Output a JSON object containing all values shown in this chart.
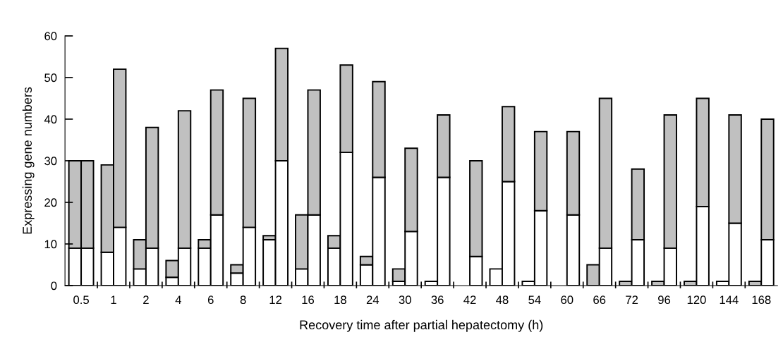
{
  "chart_data": [
    {
      "type": "bar",
      "stacked": true,
      "xlabel": "Recovery time after partial hepatectomy (h)",
      "ylabel": "Expressing gene numbers",
      "categories": [
        "0.5",
        "1",
        "2",
        "4",
        "6",
        "8",
        "12",
        "16",
        "18",
        "24",
        "30",
        "36",
        "42",
        "48",
        "54",
        "60",
        "66",
        "72",
        "96",
        "120",
        "144",
        "168"
      ],
      "series": [
        {
          "color": "#ffffff",
          "values": [
            9,
            8,
            4,
            2,
            9,
            3,
            11,
            4,
            9,
            5,
            1,
            1,
            0,
            4,
            1,
            0,
            0,
            0,
            0,
            0,
            1,
            0
          ]
        },
        {
          "color": "#c0c0c0",
          "values": [
            21,
            21,
            7,
            4,
            2,
            2,
            1,
            13,
            3,
            2,
            3,
            0,
            0,
            0,
            0,
            0,
            5,
            1,
            1,
            1,
            0,
            1
          ]
        }
      ],
      "ylim": [
        0,
        60
      ],
      "yticks": [
        0,
        10,
        20,
        30,
        40,
        50,
        60
      ],
      "grid": false,
      "legend": false
    },
    {
      "type": "bar",
      "stacked": true,
      "categories": [
        "0.5",
        "1",
        "2",
        "4",
        "6",
        "8",
        "12",
        "16",
        "18",
        "24",
        "30",
        "36",
        "42",
        "48",
        "54",
        "60",
        "66",
        "72",
        "96",
        "120",
        "144",
        "168"
      ],
      "series": [
        {
          "color": "#ffffff",
          "values": [
            9,
            14,
            9,
            9,
            17,
            14,
            30,
            17,
            32,
            26,
            13,
            26,
            7,
            25,
            18,
            17,
            9,
            11,
            9,
            19,
            15,
            11
          ]
        },
        {
          "color": "#c0c0c0",
          "values": [
            21,
            38,
            29,
            33,
            30,
            31,
            27,
            30,
            21,
            23,
            20,
            15,
            23,
            18,
            19,
            20,
            36,
            17,
            32,
            26,
            26,
            29
          ]
        }
      ],
      "ylim": [
        0,
        60
      ],
      "yticks": [
        0,
        10,
        20,
        30,
        40,
        50,
        60
      ],
      "tick_labels": false,
      "grid": false,
      "legend": false
    }
  ]
}
